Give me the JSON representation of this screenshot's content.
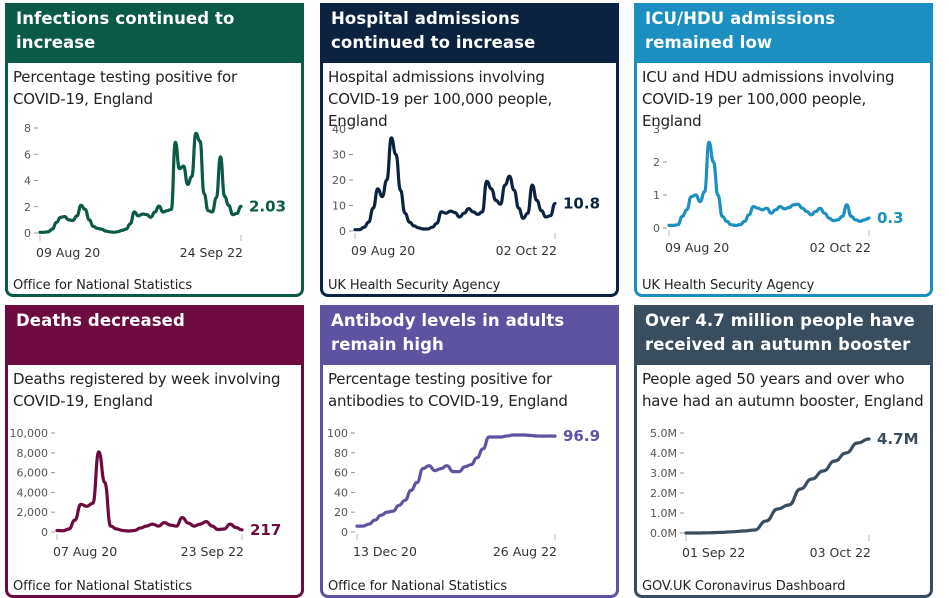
{
  "cards": [
    {
      "id": "infections",
      "color": "#0b5a47",
      "headline": "Infections continued to increase",
      "subtitle_lines": [
        "Percentage testing positive for",
        "COVID-19, England"
      ],
      "source": "Office for National Statistics"
    },
    {
      "id": "hospital",
      "color": "#0b2240",
      "headline": "Hospital admissions continued to increase",
      "subtitle_lines": [
        "Hospital admissions involving",
        "COVID-19 per 100,000 people, England"
      ],
      "source": "UK Health Security Agency"
    },
    {
      "id": "icu",
      "color": "#1b8fc0",
      "headline": "ICU/HDU admissions remained low",
      "subtitle_lines": [
        "ICU and HDU admissions involving",
        "COVID-19 per 100,000 people, England"
      ],
      "source": "UK Health Security Agency"
    },
    {
      "id": "deaths",
      "color": "#6d0a3e",
      "headline": "Deaths decreased",
      "subtitle_lines": [
        "Deaths registered by week involving",
        "COVID-19, England"
      ],
      "source": "Office for National Statistics"
    },
    {
      "id": "antibody",
      "color": "#5d53a1",
      "headline": "Antibody levels in adults remain high",
      "subtitle_lines": [
        "Percentage testing positive for",
        "antibodies to COVID-19, England"
      ],
      "source": "Office for National Statistics"
    },
    {
      "id": "booster",
      "color": "#3a4d5e",
      "headline": "Over 4.7 million people have received an autumn booster",
      "subtitle_lines": [
        "People aged 50 years and over who",
        "have had an autumn booster, England"
      ],
      "source": "GOV.UK Coronavirus Dashboard"
    }
  ],
  "chart_data": [
    {
      "type": "line",
      "title": "Percentage testing positive for COVID-19, England",
      "ylabel": "",
      "xlabel": "",
      "ylim": [
        0,
        8
      ],
      "yticks": [
        0,
        2,
        4,
        6,
        8
      ],
      "ytick_labels": [
        "0",
        "2",
        "4",
        "6",
        "8"
      ],
      "xtick_labels": [
        "09 Aug 20",
        "24 Sep 22"
      ],
      "end_label": "2.03",
      "series": [
        {
          "name": "Percentage testing positive",
          "values": [
            0.05,
            0.05,
            0.1,
            0.3,
            0.8,
            1.2,
            1.25,
            1.0,
            0.95,
            1.3,
            2.1,
            1.8,
            1.0,
            0.5,
            0.35,
            0.3,
            0.15,
            0.08,
            0.05,
            0.1,
            0.2,
            0.3,
            0.7,
            1.6,
            1.3,
            1.45,
            1.4,
            1.2,
            1.6,
            2.05,
            1.6,
            1.7,
            1.8,
            6.9,
            4.9,
            5.1,
            3.7,
            4.3,
            7.6,
            7.0,
            3.0,
            1.7,
            1.6,
            2.7,
            5.8,
            2.8,
            2.1,
            1.4,
            1.5,
            2.03
          ]
        }
      ]
    },
    {
      "type": "line",
      "title": "Hospital admissions involving COVID-19 per 100,000 people, England",
      "ylim": [
        0,
        40
      ],
      "yticks": [
        0,
        10,
        20,
        30,
        40
      ],
      "ytick_labels": [
        "0",
        "10",
        "20",
        "30",
        "40"
      ],
      "xtick_labels": [
        "09 Aug 20",
        "02 Oct 22"
      ],
      "end_label": "10.8",
      "series": [
        {
          "name": "Hospital admissions per 100,000",
          "values": [
            0.5,
            0.5,
            1.5,
            3.5,
            9,
            16.5,
            13.5,
            20,
            36.5,
            30,
            16,
            7,
            3.5,
            2,
            1.2,
            0.8,
            0.8,
            1.5,
            3,
            7.5,
            7,
            7.8,
            7.2,
            5.5,
            7,
            8.8,
            7.5,
            6.5,
            7.5,
            19.5,
            16.5,
            12,
            10.5,
            18,
            21.5,
            16,
            9,
            5,
            7,
            18,
            12,
            8,
            5.5,
            6,
            10.8
          ]
        }
      ]
    },
    {
      "type": "line",
      "title": "ICU and HDU admissions involving COVID-19 per 100,000 people, England",
      "ylim": [
        0,
        3
      ],
      "yticks": [
        0,
        1,
        2,
        3
      ],
      "ytick_labels": [
        "0",
        "1",
        "2",
        "3"
      ],
      "xtick_labels": [
        "09 Aug 20",
        "02 Oct 22"
      ],
      "end_label": "0.3",
      "series": [
        {
          "name": "ICU/HDU admissions per 100,000",
          "values": [
            0.08,
            0.08,
            0.1,
            0.35,
            0.55,
            0.95,
            1.0,
            0.8,
            1.1,
            2.6,
            2.0,
            1.0,
            0.35,
            0.2,
            0.1,
            0.08,
            0.1,
            0.2,
            0.4,
            0.65,
            0.6,
            0.55,
            0.6,
            0.45,
            0.55,
            0.65,
            0.58,
            0.62,
            0.7,
            0.72,
            0.6,
            0.5,
            0.4,
            0.5,
            0.6,
            0.45,
            0.3,
            0.22,
            0.25,
            0.35,
            0.7,
            0.35,
            0.25,
            0.2,
            0.25,
            0.3
          ]
        }
      ]
    },
    {
      "type": "line",
      "title": "Deaths registered by week involving COVID-19, England",
      "ylim": [
        0,
        10000
      ],
      "yticks": [
        0,
        2000,
        4000,
        6000,
        8000,
        10000
      ],
      "ytick_labels": [
        "0",
        "2,000",
        "4,000",
        "6,000",
        "8,000",
        "10,000"
      ],
      "xtick_labels": [
        "07 Aug 20",
        "23 Sep 22"
      ],
      "end_label": "217",
      "series": [
        {
          "name": "Weekly deaths",
          "values": [
            150,
            120,
            300,
            1200,
            2800,
            2600,
            2900,
            8100,
            5000,
            600,
            300,
            150,
            100,
            150,
            400,
            600,
            800,
            600,
            950,
            700,
            600,
            1450,
            900,
            600,
            800,
            1050,
            600,
            250,
            300,
            800,
            450,
            217
          ]
        }
      ]
    },
    {
      "type": "line",
      "title": "Percentage testing positive for antibodies to COVID-19, England",
      "ylim": [
        0,
        100
      ],
      "yticks": [
        0,
        20,
        40,
        60,
        80,
        100
      ],
      "ytick_labels": [
        "0",
        "20",
        "40",
        "60",
        "80",
        "100"
      ],
      "xtick_labels": [
        "13 Dec 20",
        "26 Aug 22"
      ],
      "end_label": "96.9",
      "series": [
        {
          "name": "Antibody positivity",
          "values": [
            6,
            6,
            8,
            12,
            17,
            20,
            21,
            27,
            32,
            42,
            50,
            64,
            67,
            62,
            64,
            67,
            61,
            61,
            66,
            68,
            75,
            84,
            96,
            96,
            96,
            97,
            98,
            98,
            98,
            97.5,
            97,
            96.9,
            97,
            96.9
          ]
        }
      ]
    },
    {
      "type": "line",
      "title": "People aged 50 years and over who have had an autumn booster, England",
      "ylim": [
        0,
        5000000
      ],
      "yticks": [
        0,
        1000000,
        2000000,
        3000000,
        4000000,
        5000000
      ],
      "ytick_labels": [
        "0.0M",
        "1.0M",
        "2.0M",
        "3.0M",
        "4.0M",
        "5.0M"
      ],
      "xtick_labels": [
        "01 Sep 22",
        "03 Oct 22"
      ],
      "end_label": "4.7M",
      "series": [
        {
          "name": "Autumn boosters",
          "values": [
            0,
            0,
            10000,
            30000,
            60000,
            100000,
            150000,
            600000,
            1200000,
            1400000,
            2200000,
            2700000,
            3100000,
            3600000,
            4000000,
            4500000,
            4700000
          ]
        }
      ]
    }
  ]
}
